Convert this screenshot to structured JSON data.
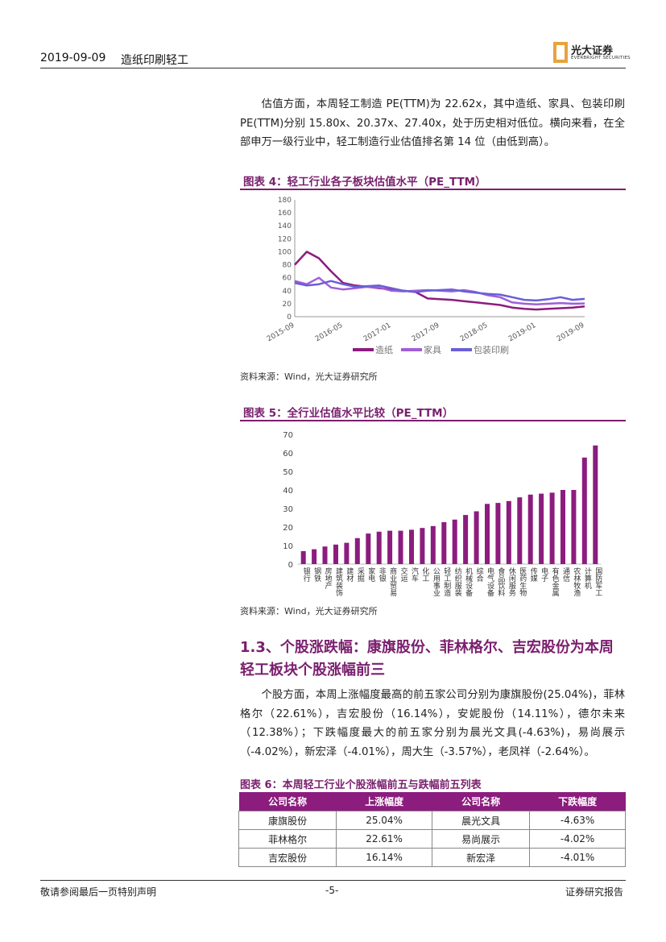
{
  "header": {
    "date": "2019-09-09",
    "section": "造纸印刷轻工",
    "logo_cn": "光大证券",
    "logo_en": "EVERBRIGHT SECURITIES"
  },
  "intro_paragraph": "估值方面，本周轻工制造 PE(TTM)为 22.62x，其中造纸、家具、包装印刷 PE(TTM)分别 15.80x、20.37x、27.40x，处于历史相对低位。横向来看，在全部申万一级行业中，轻工制造行业估值排名第 14 位（由低到高）。",
  "figure4": {
    "title": "图表 4：轻工行业各子板块估值水平（PE_TTM）",
    "source": "资料来源：Wind，光大证券研究所"
  },
  "figure5": {
    "title": "图表 5：全行业估值水平比较（PE_TTM）",
    "source": "资料来源：Wind，光大证券研究所"
  },
  "section": {
    "title": "1.3、个股涨跌幅：康旗股份、菲林格尔、吉宏股份为本周轻工板块个股涨幅前三"
  },
  "stock_paragraph": "个股方面，本周上涨幅度最高的前五家公司分别为康旗股份(25.04%)，菲林格尔（22.61%），吉宏股份（16.14%），安妮股份（14.11%），德尔未来（12.38%）；下跌幅度最大的前五家分别为晨光文具(-4.63%)，易尚展示（-4.02%），新宏泽（-4.01%），周大生（-3.57%），老凤祥（-2.64%）。",
  "table6": {
    "title": "图表 6：本周轻工行业个股涨幅前五与跌幅前五列表",
    "headers": [
      "公司名称",
      "上涨幅度",
      "公司名称",
      "下跌幅度"
    ],
    "rows": [
      [
        "康旗股份",
        "25.04%",
        "晨光文具",
        "-4.63%"
      ],
      [
        "菲林格尔",
        "22.61%",
        "易尚展示",
        "-4.02%"
      ],
      [
        "吉宏股份",
        "16.14%",
        "新宏泽",
        "-4.01%"
      ]
    ]
  },
  "footer": {
    "left": "敬请参阅最后一页特别声明",
    "center": "-5-",
    "right": "证券研究报告"
  },
  "colors": {
    "accent": "#7a1f6e",
    "bar": "#8c1c7e",
    "paper": "#8c1c7e",
    "furniture": "#a15fd6",
    "packaging": "#6a5fd8"
  },
  "chart_data": [
    {
      "type": "line",
      "title": "图表 4：轻工行业各子板块估值水平（PE_TTM）",
      "x": [
        "2015-09",
        "2015-11",
        "2016-01",
        "2016-03",
        "2016-05",
        "2016-07",
        "2016-09",
        "2016-11",
        "2017-01",
        "2017-03",
        "2017-05",
        "2017-07",
        "2017-09",
        "2017-11",
        "2018-01",
        "2018-03",
        "2018-05",
        "2018-07",
        "2018-09",
        "2018-11",
        "2019-01",
        "2019-03",
        "2019-05",
        "2019-07",
        "2019-09"
      ],
      "x_tick_labels": [
        "2015-09",
        "2016-05",
        "2017-01",
        "2017-09",
        "2018-05",
        "2019-01",
        "2019-09"
      ],
      "series": [
        {
          "name": "造纸",
          "values": [
            80,
            100,
            90,
            70,
            52,
            48,
            46,
            44,
            42,
            40,
            38,
            28,
            27,
            26,
            24,
            22,
            20,
            18,
            14,
            12,
            11,
            12,
            13,
            14,
            15.8
          ]
        },
        {
          "name": "家具",
          "values": [
            55,
            50,
            60,
            45,
            42,
            44,
            46,
            45,
            40,
            39,
            40,
            41,
            40,
            39,
            41,
            38,
            33,
            30,
            22,
            20,
            19,
            20,
            21,
            20,
            20.37
          ]
        },
        {
          "name": "包装印刷",
          "values": [
            52,
            48,
            50,
            55,
            50,
            46,
            47,
            48,
            44,
            40,
            38,
            40,
            41,
            42,
            39,
            37,
            35,
            34,
            30,
            26,
            25,
            27,
            30,
            26,
            27.4
          ]
        }
      ],
      "ylim": [
        0,
        180
      ],
      "yticks": [
        0,
        20,
        40,
        60,
        80,
        100,
        120,
        140,
        160,
        180
      ],
      "legend": "bottom"
    },
    {
      "type": "bar",
      "title": "图表 5：全行业估值水平比较（PE_TTM）",
      "categories": [
        "银行",
        "钢铁",
        "房地产",
        "建筑装饰",
        "建材",
        "采掘",
        "家电",
        "非银",
        "商业贸易",
        "交运",
        "汽车",
        "化工",
        "公用事业",
        "轻工制造",
        "纺织服装",
        "机械设备",
        "综合",
        "电气设备",
        "食品饮料",
        "休闲服务",
        "医药生物",
        "传媒",
        "电子",
        "有色金属",
        "通信",
        "农林牧渔",
        "计算机",
        "国防军工"
      ],
      "values": [
        7,
        8,
        9.5,
        10.5,
        11.5,
        14,
        16.5,
        17.5,
        18,
        18,
        18.5,
        19.5,
        20.5,
        22.6,
        24,
        26.5,
        28.5,
        32.5,
        33,
        34,
        36,
        37.5,
        38,
        38.5,
        40,
        40,
        57.5,
        64
      ],
      "ylim": [
        0,
        70
      ],
      "yticks": [
        0,
        10,
        20,
        30,
        40,
        50,
        60,
        70
      ]
    }
  ]
}
